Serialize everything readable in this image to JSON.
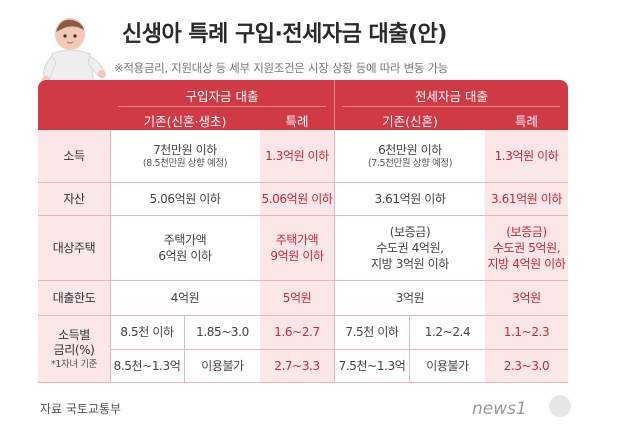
{
  "title": "신생아 특례 구입·전세자금 대출(안)",
  "note": "※적용금리, 지원대상 등 세부 지원조건은 시장 상황 등에 따라 변동 가능",
  "header": {
    "purchase_group": "구입자금 대출",
    "jeonse_group": "전세자금 대출",
    "purchase_existing": "기존(신혼·생초)",
    "purchase_special": "특례",
    "jeonse_existing": "기존(신혼)",
    "jeonse_special": "특례"
  },
  "rows": {
    "income": {
      "label": "소득",
      "purchase_existing": "7천만원 이하",
      "purchase_existing_note": "(8.5천만원 상향 예정)",
      "purchase_special": "1.3억원 이하",
      "jeonse_existing": "6천만원 이하",
      "jeonse_existing_note": "(7.5천만원 상향 예정)",
      "jeonse_special": "1.3억원 이하"
    },
    "assets": {
      "label": "자산",
      "purchase_existing": "5.06억원 이하",
      "purchase_special": "5.06억원 이하",
      "jeonse_existing": "3.61억원 이하",
      "jeonse_special": "3.61억원 이하"
    },
    "housing": {
      "label": "대상주택",
      "purchase_existing_l1": "주택가액",
      "purchase_existing_l2": "6억원 이하",
      "purchase_special_l1": "주택가액",
      "purchase_special_l2": "9억원 이하",
      "jeonse_existing_l1": "(보증금)",
      "jeonse_existing_l2": "수도권 4억원,",
      "jeonse_existing_l3": "지방 3억원 이하",
      "jeonse_special_l1": "(보증금)",
      "jeonse_special_l2": "수도권 5억원,",
      "jeonse_special_l3": "지방 4억원 이하"
    },
    "limit": {
      "label": "대출한도",
      "purchase_existing": "4억원",
      "purchase_special": "5억원",
      "jeonse_existing": "3억원",
      "jeonse_special": "3억원"
    },
    "rate": {
      "label_l1": "소득별",
      "label_l2": "금리(%)",
      "label_l3": "*1자녀 기준",
      "r1": {
        "purchase_band": "8.5천 이하",
        "purchase_existing": "1.85~3.0",
        "purchase_special": "1.6~2.7",
        "jeonse_band": "7.5천 이하",
        "jeonse_existing": "1.2~2.4",
        "jeonse_special": "1.1~2.3"
      },
      "r2": {
        "purchase_band": "8.5천~1.3억",
        "purchase_existing": "이용불가",
        "purchase_special": "2.7~3.3",
        "jeonse_band": "7.5천~1.3억",
        "jeonse_existing": "이용불가",
        "jeonse_special": "2.3~3.0"
      }
    }
  },
  "source": "자료  국토교통부",
  "logo": "news1",
  "colors": {
    "header": "#cf3a45",
    "highlight_bg": "#fbe7e8",
    "highlight_text": "#c6283a"
  },
  "icons": [
    "baby-illustration",
    "news1-logo"
  ]
}
